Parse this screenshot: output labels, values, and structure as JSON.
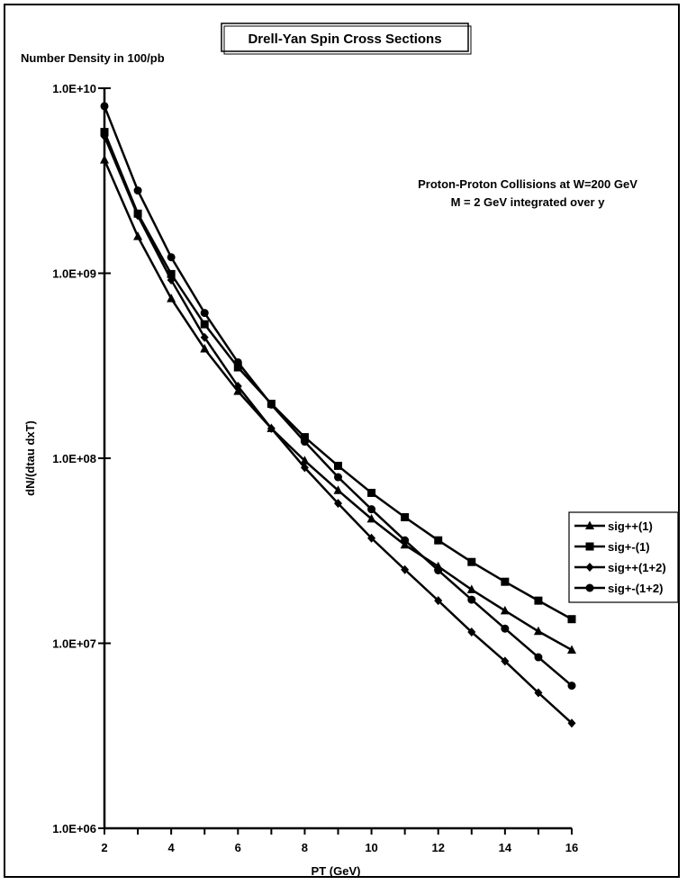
{
  "chart_data": {
    "type": "line",
    "title": "Drell-Yan Spin Cross Sections",
    "subtitle_lines": [
      "Proton-Proton Collisions at W=200 GeV",
      "M = 2 GeV  integrated over y"
    ],
    "y_axis_note": "Number Density in 100/pb",
    "xlabel": "PT  (GeV)",
    "ylabel": "dN/(dtau dxT)",
    "x": [
      2,
      3,
      4,
      5,
      6,
      7,
      8,
      9,
      10,
      11,
      12,
      13,
      14,
      15,
      16
    ],
    "xlim": [
      2,
      16
    ],
    "x_ticks": [
      2,
      4,
      6,
      8,
      10,
      12,
      14,
      16
    ],
    "ylim": [
      1000000,
      10000000000
    ],
    "y_scale": "log",
    "y_ticks": [
      {
        "value": 1000000,
        "label": "1.0E+06"
      },
      {
        "value": 10000000,
        "label": "1.0E+07"
      },
      {
        "value": 100000000,
        "label": "1.0E+08"
      },
      {
        "value": 1000000000,
        "label": "1.0E+09"
      },
      {
        "value": 10000000000,
        "label": "1.0E+10"
      }
    ],
    "grid": false,
    "legend_position": "right",
    "series": [
      {
        "name": "sig++(1)",
        "marker": "triangle",
        "values": [
          4100000000,
          1580000000,
          730000000,
          390000000,
          230000000,
          145000000,
          97000000,
          67000000,
          47000000,
          34000000,
          26000000,
          19500000,
          15000000,
          11600000,
          9200000
        ]
      },
      {
        "name": "sig+-(1)",
        "marker": "square",
        "values": [
          5800000000,
          2100000000,
          990000000,
          530000000,
          310000000,
          197000000,
          130000000,
          91000000,
          65000000,
          48000000,
          36000000,
          27500000,
          21500000,
          17000000,
          13500000
        ]
      },
      {
        "name": "sig++(1+2)",
        "marker": "diamond",
        "values": [
          5500000000,
          2050000000,
          920000000,
          450000000,
          245000000,
          145000000,
          89000000,
          57000000,
          37000000,
          25000000,
          17000000,
          11500000,
          8000000,
          5400000,
          3700000
        ]
      },
      {
        "name": "sig+-(1+2)",
        "marker": "circle",
        "values": [
          8000000000,
          2800000000,
          1220000000,
          610000000,
          330000000,
          195000000,
          123000000,
          79000000,
          53000000,
          36000000,
          24800000,
          17200000,
          12000000,
          8400000,
          5900000
        ]
      }
    ]
  }
}
